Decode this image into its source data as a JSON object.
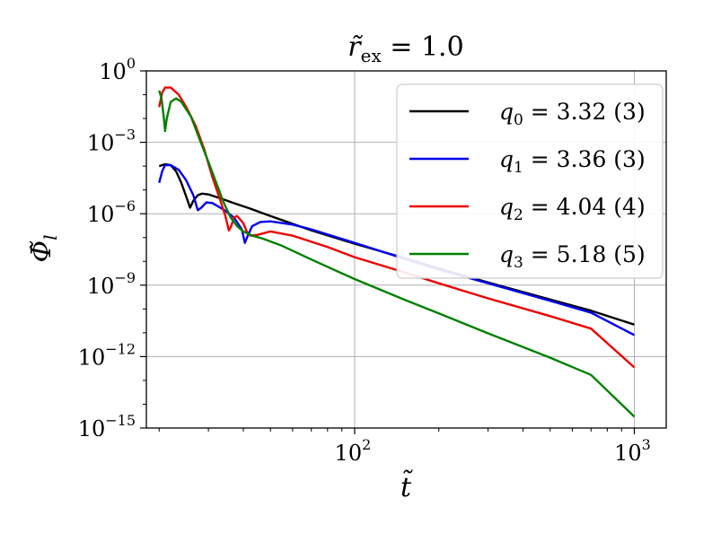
{
  "chart_data": {
    "type": "line",
    "title": "r̃ex = 1.0",
    "title_parts": {
      "base": "r̃",
      "sub": "ex",
      "rest": " = 1.0"
    },
    "xlabel": "t̃",
    "ylabel": "Φ̃",
    "ylabel_sub": "l",
    "x_scale": "log",
    "y_scale": "log",
    "xlim": [
      18,
      1300
    ],
    "ylim": [
      1e-15,
      1
    ],
    "grid": true,
    "legend_position": "top-right",
    "x_ticks": [
      {
        "value": 100,
        "base": "10",
        "exp": "2"
      },
      {
        "value": 1000,
        "base": "10",
        "exp": "3"
      }
    ],
    "y_ticks": [
      {
        "value": 1,
        "base": "10",
        "exp": "0"
      },
      {
        "value": 0.001,
        "base": "10",
        "exp": "−3"
      },
      {
        "value": 1e-06,
        "base": "10",
        "exp": "−6"
      },
      {
        "value": 1e-09,
        "base": "10",
        "exp": "−9"
      },
      {
        "value": 1e-12,
        "base": "10",
        "exp": "−12"
      },
      {
        "value": 1e-15,
        "base": "10",
        "exp": "−15"
      }
    ],
    "series": [
      {
        "name": "q0 = 3.32 (3)",
        "label_parts": {
          "q": "q",
          "sub": "0",
          "rest": " = 3.32 (3)"
        },
        "color": "#000000",
        "points": [
          [
            20.0,
            0.0001
          ],
          [
            21.0,
            0.00012
          ],
          [
            22.0,
            0.00011
          ],
          [
            23.0,
            6e-05
          ],
          [
            24.0,
            2e-05
          ],
          [
            25.2,
            4e-06
          ],
          [
            25.8,
            1.8e-06
          ],
          [
            26.5,
            3.5e-06
          ],
          [
            27.5,
            6e-06
          ],
          [
            28.5,
            7e-06
          ],
          [
            30.0,
            6.5e-06
          ],
          [
            33.0,
            4.5e-06
          ],
          [
            37.0,
            2.8e-06
          ],
          [
            42.0,
            1.7e-06
          ],
          [
            50.0,
            8e-07
          ],
          [
            70.0,
            2e-07
          ],
          [
            100.0,
            5.5e-08
          ],
          [
            150.0,
            1.4e-08
          ],
          [
            200.0,
            5e-09
          ],
          [
            300.0,
            1.3e-09
          ],
          [
            500.0,
            2.5e-10
          ],
          [
            700.0,
            8.5e-11
          ],
          [
            1000.0,
            2.2e-11
          ]
        ]
      },
      {
        "name": "q1 = 3.36 (3)",
        "label_parts": {
          "q": "q",
          "sub": "1",
          "rest": " = 3.36 (3)"
        },
        "color": "#0000ee",
        "points": [
          [
            20.0,
            2e-05
          ],
          [
            20.5,
            6e-05
          ],
          [
            21.0,
            0.00011
          ],
          [
            22.0,
            0.00011
          ],
          [
            23.5,
            7e-05
          ],
          [
            25.0,
            2.5e-05
          ],
          [
            26.5,
            6e-06
          ],
          [
            27.5,
            1.4e-06
          ],
          [
            28.3,
            1.8e-06
          ],
          [
            29.5,
            3e-06
          ],
          [
            31.0,
            2.8e-06
          ],
          [
            34.0,
            1.5e-06
          ],
          [
            37.0,
            7e-07
          ],
          [
            39.5,
            2.2e-07
          ],
          [
            40.5,
            6e-08
          ],
          [
            41.5,
            1.2e-07
          ],
          [
            43.0,
            3e-07
          ],
          [
            46.0,
            4.5e-07
          ],
          [
            50.0,
            4.8e-07
          ],
          [
            60.0,
            3.5e-07
          ],
          [
            70.0,
            2.2e-07
          ],
          [
            100.0,
            6e-08
          ],
          [
            150.0,
            1.3e-08
          ],
          [
            200.0,
            4.5e-09
          ],
          [
            300.0,
            1.2e-09
          ],
          [
            500.0,
            2.2e-10
          ],
          [
            700.0,
            7e-11
          ],
          [
            1000.0,
            8e-12
          ]
        ]
      },
      {
        "name": "q2 = 4.04 (4)",
        "label_parts": {
          "q": "q",
          "sub": "2",
          "rest": " = 4.04 (4)"
        },
        "color": "#ee0000",
        "points": [
          [
            20.0,
            0.03
          ],
          [
            20.5,
            0.12
          ],
          [
            21.0,
            0.2
          ],
          [
            22.0,
            0.2
          ],
          [
            23.5,
            0.1
          ],
          [
            25.0,
            0.03
          ],
          [
            27.0,
            0.005
          ],
          [
            29.0,
            0.0005
          ],
          [
            31.0,
            3.5e-05
          ],
          [
            33.0,
            4e-06
          ],
          [
            34.5,
            8e-07
          ],
          [
            35.5,
            2e-07
          ],
          [
            36.2,
            3e-07
          ],
          [
            37.0,
            7e-07
          ],
          [
            38.0,
            8e-07
          ],
          [
            40.0,
            4e-07
          ],
          [
            41.5,
            1.4e-07
          ],
          [
            42.5,
            1.2e-07
          ],
          [
            45.0,
            1.3e-07
          ],
          [
            50.0,
            1.8e-07
          ],
          [
            60.0,
            1.2e-07
          ],
          [
            80.0,
            4e-08
          ],
          [
            100.0,
            1.5e-08
          ],
          [
            150.0,
            3.5e-09
          ],
          [
            200.0,
            1.2e-09
          ],
          [
            300.0,
            2.8e-10
          ],
          [
            500.0,
            5e-11
          ],
          [
            700.0,
            1.5e-11
          ],
          [
            1000.0,
            3.5e-13
          ]
        ]
      },
      {
        "name": "q3 = 5.18 (5)",
        "label_parts": {
          "q": "q",
          "sub": "3",
          "rest": " = 5.18 (5)"
        },
        "color": "#008000",
        "points": [
          [
            20.0,
            0.15
          ],
          [
            20.4,
            0.07
          ],
          [
            20.8,
            0.01
          ],
          [
            21.0,
            0.003
          ],
          [
            21.3,
            0.01
          ],
          [
            22.0,
            0.05
          ],
          [
            23.0,
            0.07
          ],
          [
            24.0,
            0.05
          ],
          [
            26.0,
            0.012
          ],
          [
            28.0,
            0.0012
          ],
          [
            30.0,
            0.00015
          ],
          [
            32.0,
            2e-05
          ],
          [
            34.0,
            3e-06
          ],
          [
            36.0,
            7e-07
          ],
          [
            38.0,
            3e-07
          ],
          [
            40.0,
            1.8e-07
          ],
          [
            43.0,
            1.2e-07
          ],
          [
            47.0,
            9e-08
          ],
          [
            55.0,
            4.5e-08
          ],
          [
            70.0,
            1.2e-08
          ],
          [
            100.0,
            1.8e-09
          ],
          [
            150.0,
            2.5e-10
          ],
          [
            200.0,
            6.5e-11
          ],
          [
            300.0,
            9.5e-12
          ],
          [
            500.0,
            9e-13
          ],
          [
            700.0,
            1.7e-13
          ],
          [
            1000.0,
            3e-15
          ]
        ]
      }
    ]
  }
}
